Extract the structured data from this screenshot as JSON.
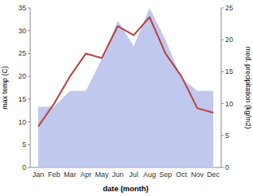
{
  "chart_data": {
    "type": "line",
    "xlabel": "date (month)",
    "ylabel": "max temp (C)",
    "y2label": "med. precipitation (kg/m2)",
    "categories": [
      "Jan",
      "Feb",
      "Mar",
      "Apr",
      "May",
      "Jun",
      "Jul",
      "Aug",
      "Sep",
      "Oct",
      "Nov",
      "Dec"
    ],
    "series": [
      {
        "type": "area",
        "axis": "y2",
        "color": "#c0c8ee",
        "values": [
          9.5,
          9.5,
          12,
          12,
          17,
          23,
          19,
          25,
          20,
          14,
          12,
          12
        ]
      },
      {
        "type": "line",
        "color": "#b94040",
        "values": [
          9,
          14,
          20,
          25,
          24,
          31,
          29,
          33,
          25,
          20,
          13,
          12
        ]
      }
    ],
    "ylim": [
      0,
      35
    ],
    "yticks": [
      0,
      5,
      10,
      15,
      20,
      25,
      30,
      35
    ],
    "y2lim": [
      0,
      25
    ],
    "y2ticks": [
      0,
      5,
      10,
      15,
      20,
      25
    ],
    "grid": false
  }
}
